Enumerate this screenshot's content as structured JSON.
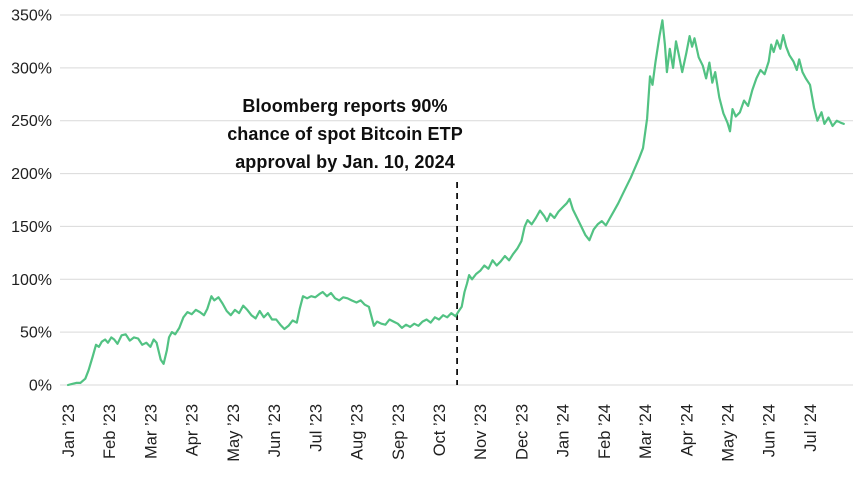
{
  "annotation": {
    "lines": [
      "Bloomberg reports 90%",
      "chance of spot Bitcoin ETP",
      "approval by Jan. 10, 2024"
    ]
  },
  "chart_data": {
    "type": "line",
    "title": "",
    "xlabel": "",
    "ylabel": "",
    "grid": "horizontal",
    "legend": "none",
    "ylim": [
      0,
      350
    ],
    "y_tick_labels": [
      "0%",
      "50%",
      "100%",
      "150%",
      "200%",
      "250%",
      "300%",
      "350%"
    ],
    "x_tick_labels": [
      "Jan ’23",
      "Feb ’23",
      "Mar ’23",
      "Apr ’23",
      "May ’23",
      "Jun ’23",
      "Jul ’23",
      "Aug ’23",
      "Sep ’23",
      "Oct ’23",
      "Nov ’23",
      "Dec ’23",
      "Jan ’24",
      "Feb ’24",
      "Mar ’24",
      "Apr ’24",
      "May ’24",
      "Jun ’24",
      "Jul ’24"
    ],
    "x_unit": "months_since_jan_2023",
    "event_line": {
      "x_month": 9.44,
      "y_top_value": 192,
      "style": "dashed"
    },
    "colors": {
      "line": "#52c283",
      "grid": "#d9d9d9",
      "axis_text": "#1f1f1f",
      "event_line": "#111111",
      "background": "#ffffff"
    },
    "points": [
      [
        0,
        0
      ],
      [
        0.1,
        1
      ],
      [
        0.2,
        2
      ],
      [
        0.3,
        2
      ],
      [
        0.42,
        6
      ],
      [
        0.5,
        14
      ],
      [
        0.6,
        27
      ],
      [
        0.68,
        38
      ],
      [
        0.75,
        36
      ],
      [
        0.82,
        41
      ],
      [
        0.9,
        43
      ],
      [
        0.97,
        40
      ],
      [
        1.05,
        45
      ],
      [
        1.12,
        43
      ],
      [
        1.2,
        39
      ],
      [
        1.3,
        47
      ],
      [
        1.4,
        48
      ],
      [
        1.5,
        42
      ],
      [
        1.6,
        45
      ],
      [
        1.7,
        44
      ],
      [
        1.8,
        38
      ],
      [
        1.9,
        40
      ],
      [
        2.0,
        36
      ],
      [
        2.08,
        43
      ],
      [
        2.15,
        40
      ],
      [
        2.25,
        24
      ],
      [
        2.32,
        20
      ],
      [
        2.4,
        33
      ],
      [
        2.45,
        45
      ],
      [
        2.52,
        50
      ],
      [
        2.6,
        48
      ],
      [
        2.7,
        54
      ],
      [
        2.8,
        64
      ],
      [
        2.9,
        69
      ],
      [
        3.0,
        67
      ],
      [
        3.1,
        71
      ],
      [
        3.2,
        69
      ],
      [
        3.3,
        66
      ],
      [
        3.38,
        72
      ],
      [
        3.48,
        84
      ],
      [
        3.55,
        80
      ],
      [
        3.65,
        83
      ],
      [
        3.75,
        77
      ],
      [
        3.85,
        70
      ],
      [
        3.95,
        66
      ],
      [
        4.05,
        71
      ],
      [
        4.15,
        68
      ],
      [
        4.25,
        75
      ],
      [
        4.35,
        71
      ],
      [
        4.45,
        66
      ],
      [
        4.55,
        63
      ],
      [
        4.65,
        70
      ],
      [
        4.75,
        64
      ],
      [
        4.85,
        68
      ],
      [
        4.95,
        62
      ],
      [
        5.05,
        62
      ],
      [
        5.15,
        57
      ],
      [
        5.25,
        53
      ],
      [
        5.35,
        56
      ],
      [
        5.45,
        61
      ],
      [
        5.55,
        59
      ],
      [
        5.62,
        72
      ],
      [
        5.7,
        84
      ],
      [
        5.8,
        82
      ],
      [
        5.9,
        84
      ],
      [
        6.0,
        83
      ],
      [
        6.1,
        86
      ],
      [
        6.18,
        88
      ],
      [
        6.28,
        84
      ],
      [
        6.38,
        87
      ],
      [
        6.48,
        82
      ],
      [
        6.58,
        80
      ],
      [
        6.68,
        83
      ],
      [
        6.78,
        82
      ],
      [
        6.88,
        80
      ],
      [
        7.0,
        78
      ],
      [
        7.1,
        80
      ],
      [
        7.2,
        76
      ],
      [
        7.3,
        74
      ],
      [
        7.42,
        56
      ],
      [
        7.5,
        60
      ],
      [
        7.6,
        58
      ],
      [
        7.7,
        57
      ],
      [
        7.8,
        62
      ],
      [
        7.9,
        60
      ],
      [
        8.0,
        58
      ],
      [
        8.1,
        54
      ],
      [
        8.2,
        57
      ],
      [
        8.3,
        55
      ],
      [
        8.4,
        58
      ],
      [
        8.5,
        56
      ],
      [
        8.6,
        60
      ],
      [
        8.7,
        62
      ],
      [
        8.8,
        59
      ],
      [
        8.9,
        64
      ],
      [
        9.0,
        62
      ],
      [
        9.1,
        66
      ],
      [
        9.2,
        64
      ],
      [
        9.3,
        68
      ],
      [
        9.4,
        65
      ],
      [
        9.48,
        70
      ],
      [
        9.55,
        74
      ],
      [
        9.62,
        88
      ],
      [
        9.68,
        96
      ],
      [
        9.73,
        104
      ],
      [
        9.8,
        100
      ],
      [
        9.9,
        105
      ],
      [
        10.0,
        108
      ],
      [
        10.1,
        113
      ],
      [
        10.2,
        110
      ],
      [
        10.3,
        118
      ],
      [
        10.4,
        113
      ],
      [
        10.5,
        117
      ],
      [
        10.6,
        122
      ],
      [
        10.7,
        118
      ],
      [
        10.8,
        124
      ],
      [
        10.9,
        129
      ],
      [
        11.0,
        136
      ],
      [
        11.08,
        150
      ],
      [
        11.15,
        156
      ],
      [
        11.25,
        152
      ],
      [
        11.35,
        158
      ],
      [
        11.45,
        165
      ],
      [
        11.55,
        160
      ],
      [
        11.62,
        155
      ],
      [
        11.7,
        162
      ],
      [
        11.8,
        158
      ],
      [
        11.9,
        164
      ],
      [
        12.0,
        168
      ],
      [
        12.1,
        172
      ],
      [
        12.17,
        176
      ],
      [
        12.25,
        166
      ],
      [
        12.35,
        158
      ],
      [
        12.45,
        150
      ],
      [
        12.55,
        142
      ],
      [
        12.65,
        137
      ],
      [
        12.75,
        147
      ],
      [
        12.85,
        152
      ],
      [
        12.95,
        155
      ],
      [
        13.05,
        151
      ],
      [
        13.15,
        158
      ],
      [
        13.25,
        165
      ],
      [
        13.35,
        172
      ],
      [
        13.45,
        180
      ],
      [
        13.55,
        188
      ],
      [
        13.65,
        196
      ],
      [
        13.75,
        205
      ],
      [
        13.85,
        214
      ],
      [
        13.95,
        224
      ],
      [
        14.05,
        252
      ],
      [
        14.12,
        292
      ],
      [
        14.18,
        284
      ],
      [
        14.25,
        305
      ],
      [
        14.35,
        330
      ],
      [
        14.42,
        345
      ],
      [
        14.48,
        322
      ],
      [
        14.53,
        296
      ],
      [
        14.6,
        318
      ],
      [
        14.68,
        300
      ],
      [
        14.75,
        325
      ],
      [
        14.82,
        312
      ],
      [
        14.9,
        296
      ],
      [
        15.0,
        314
      ],
      [
        15.08,
        330
      ],
      [
        15.14,
        320
      ],
      [
        15.2,
        328
      ],
      [
        15.3,
        310
      ],
      [
        15.4,
        302
      ],
      [
        15.48,
        290
      ],
      [
        15.56,
        305
      ],
      [
        15.63,
        286
      ],
      [
        15.7,
        296
      ],
      [
        15.8,
        272
      ],
      [
        15.9,
        257
      ],
      [
        16.0,
        248
      ],
      [
        16.06,
        240
      ],
      [
        16.12,
        261
      ],
      [
        16.2,
        254
      ],
      [
        16.3,
        258
      ],
      [
        16.4,
        269
      ],
      [
        16.5,
        264
      ],
      [
        16.6,
        279
      ],
      [
        16.7,
        290
      ],
      [
        16.8,
        298
      ],
      [
        16.9,
        294
      ],
      [
        17.0,
        306
      ],
      [
        17.06,
        322
      ],
      [
        17.12,
        315
      ],
      [
        17.2,
        326
      ],
      [
        17.28,
        318
      ],
      [
        17.35,
        331
      ],
      [
        17.42,
        320
      ],
      [
        17.5,
        312
      ],
      [
        17.6,
        306
      ],
      [
        17.68,
        298
      ],
      [
        17.74,
        308
      ],
      [
        17.82,
        296
      ],
      [
        17.9,
        290
      ],
      [
        18.0,
        284
      ],
      [
        18.1,
        262
      ],
      [
        18.18,
        250
      ],
      [
        18.28,
        258
      ],
      [
        18.35,
        247
      ],
      [
        18.45,
        253
      ],
      [
        18.55,
        245
      ],
      [
        18.65,
        250
      ],
      [
        18.75,
        248
      ],
      [
        18.82,
        247
      ]
    ]
  }
}
